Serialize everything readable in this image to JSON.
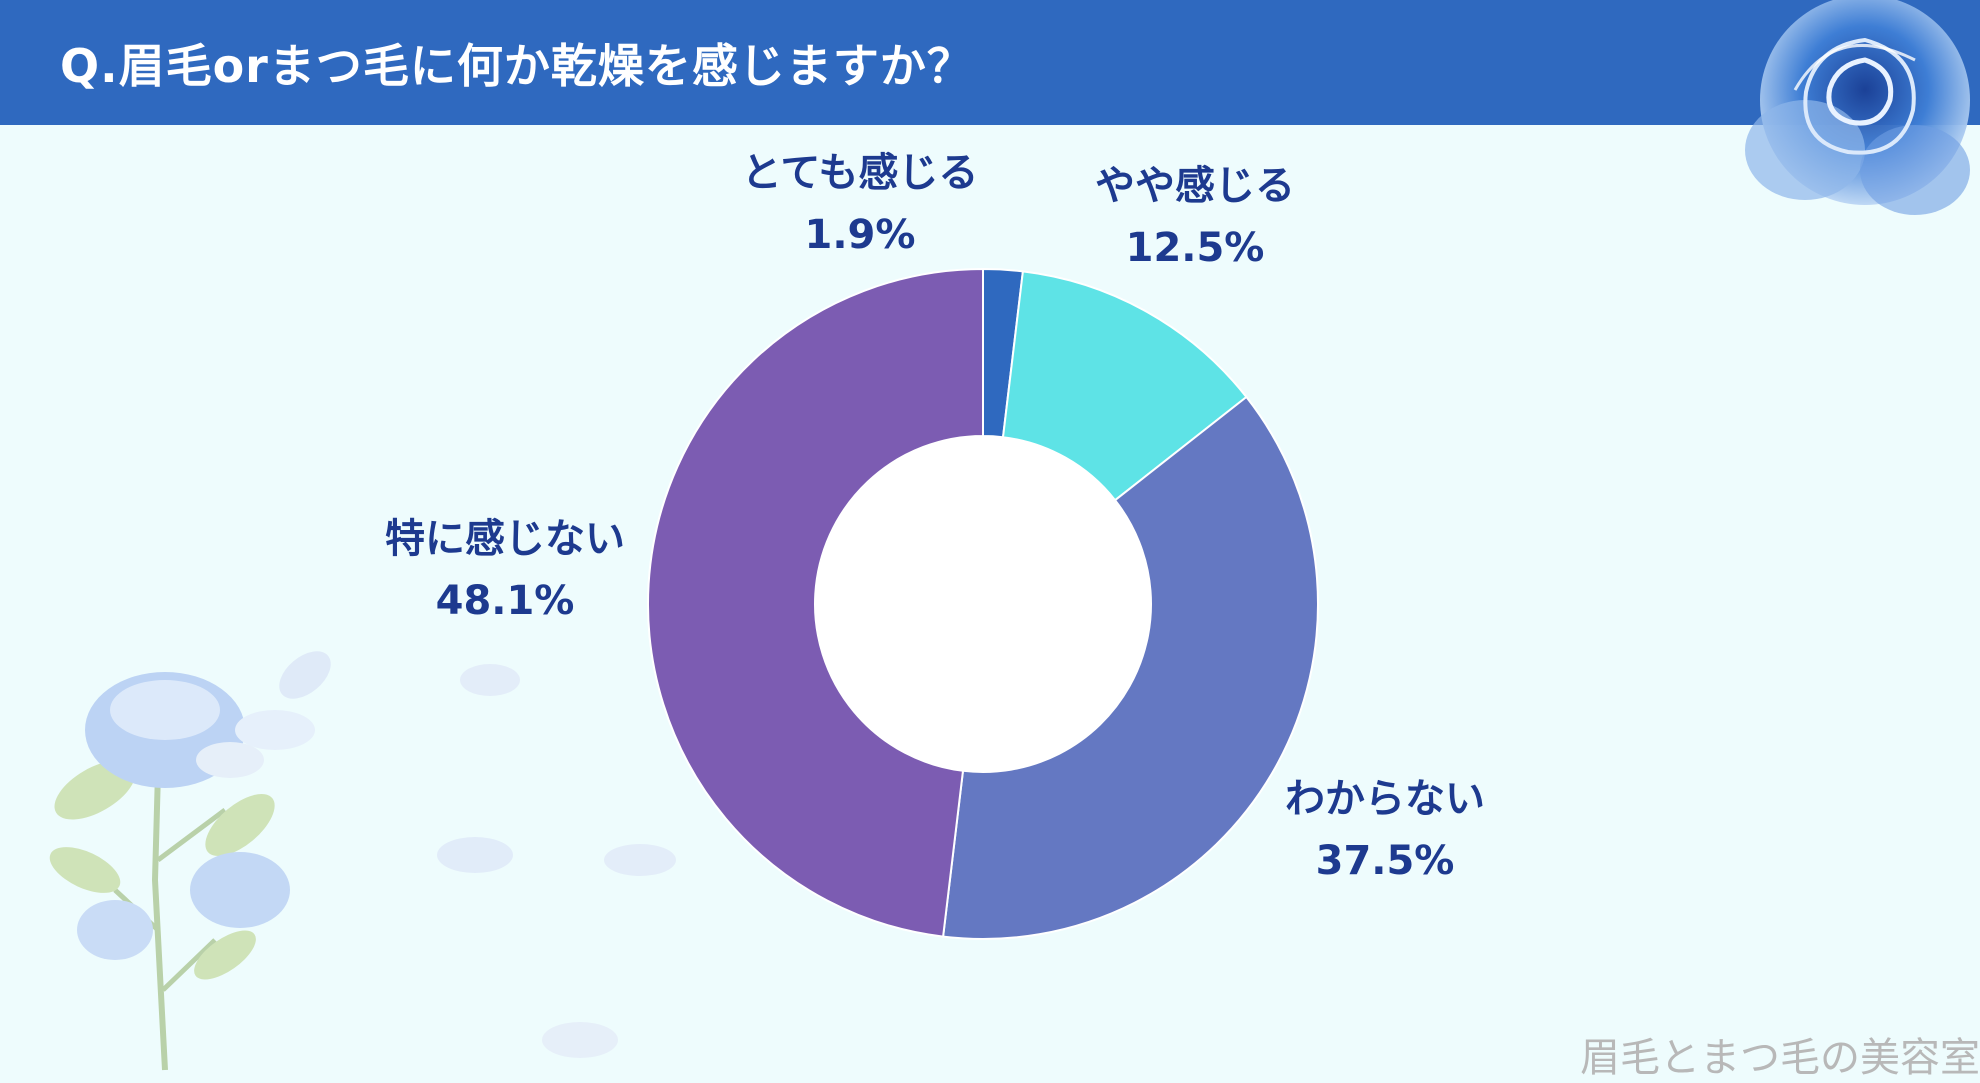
{
  "header": {
    "title": "Q.眉毛orまつ毛に何か乾燥を感じますか？"
  },
  "colors": {
    "header_bg": "#2f69bf",
    "background": "#eefcfd",
    "label_text": "#1d3a8f",
    "watermark": "#b8b8b8"
  },
  "chart_data": {
    "type": "pie",
    "variant": "donut",
    "title": "Q.眉毛orまつ毛に何か乾燥を感じますか？",
    "categories": [
      "とても感じる",
      "やや感じる",
      "わからない",
      "特に感じない"
    ],
    "values": [
      1.9,
      12.5,
      37.5,
      48.1
    ],
    "value_labels": [
      "1.9%",
      "12.5%",
      "37.5%",
      "48.1%"
    ],
    "colors": [
      "#2f69bf",
      "#5ee3e6",
      "#6478c2",
      "#7c5cb2"
    ],
    "start": "12 o'clock, clockwise",
    "legend": "none (labels placed beside slices)"
  },
  "watermark": {
    "text": "眉毛とまつ毛の美容室"
  },
  "decorations": {
    "icons": [
      "blue-rose-icon",
      "rose-branch-icon",
      "petal-icon"
    ]
  }
}
